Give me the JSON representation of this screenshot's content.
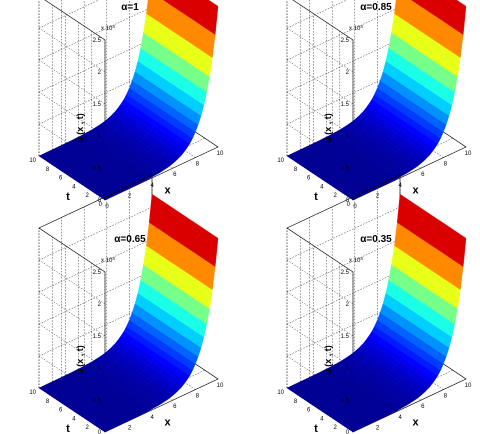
{
  "chart_data": [
    {
      "type": "surface",
      "title": "α=1",
      "xlabel": "x",
      "ylabel": "t",
      "zlabel": "u (x , t)",
      "z_exponent_label": "x 10",
      "z_exponent": "4",
      "x_ticks": [
        "0",
        "2",
        "4",
        "6",
        "8",
        "10"
      ],
      "t_ticks": [
        "0",
        "2",
        "4",
        "6",
        "8",
        "10"
      ],
      "z_ticks": [
        "0",
        "0.5",
        "1",
        "1.5",
        "2",
        "2.5"
      ],
      "xlim": [
        0,
        10
      ],
      "tlim": [
        0,
        10
      ],
      "zlim": [
        0,
        25000
      ],
      "z_peak": 22000,
      "grid": true,
      "colormap": "jet"
    },
    {
      "type": "surface",
      "title": "α=0.85",
      "xlabel": "x",
      "ylabel": "t",
      "zlabel": "u (x , t)",
      "z_exponent_label": "x 10",
      "z_exponent": "4",
      "x_ticks": [
        "0",
        "2",
        "4",
        "6",
        "8",
        "10"
      ],
      "t_ticks": [
        "0",
        "2",
        "4",
        "6",
        "8",
        "10"
      ],
      "z_ticks": [
        "0",
        "0.5",
        "1",
        "1.5",
        "2",
        "2.5"
      ],
      "xlim": [
        0,
        10
      ],
      "tlim": [
        0,
        10
      ],
      "zlim": [
        0,
        25000
      ],
      "z_peak": 22000,
      "grid": true,
      "colormap": "jet"
    },
    {
      "type": "surface",
      "title": "α=0.65",
      "xlabel": "x",
      "ylabel": "t",
      "zlabel": "u (x , t)",
      "z_exponent_label": "x 10",
      "z_exponent": "4",
      "x_ticks": [
        "0",
        "2",
        "4",
        "6",
        "8",
        "10"
      ],
      "t_ticks": [
        "0",
        "2",
        "4",
        "6",
        "8",
        "10"
      ],
      "z_ticks": [
        "0",
        "0.5",
        "1",
        "1.5",
        "2",
        "2.5"
      ],
      "xlim": [
        0,
        10
      ],
      "tlim": [
        0,
        10
      ],
      "zlim": [
        0,
        25000
      ],
      "z_peak": 22000,
      "grid": true,
      "colormap": "jet"
    },
    {
      "type": "surface",
      "title": "α=0.35",
      "xlabel": "x",
      "ylabel": "t",
      "zlabel": "u (x , t)",
      "z_exponent_label": "x 10",
      "z_exponent": "4",
      "x_ticks": [
        "0",
        "2",
        "4",
        "6",
        "8",
        "10"
      ],
      "t_ticks": [
        "0",
        "2",
        "4",
        "6",
        "8",
        "10"
      ],
      "z_ticks": [
        "0",
        "0.5",
        "1",
        "1.5",
        "2",
        "2.5"
      ],
      "xlim": [
        0,
        10
      ],
      "tlim": [
        0,
        10
      ],
      "zlim": [
        0,
        25000
      ],
      "z_peak": 22000,
      "grid": true,
      "colormap": "jet"
    }
  ]
}
